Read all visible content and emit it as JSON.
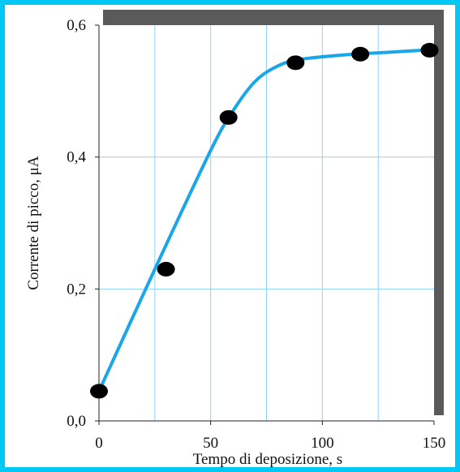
{
  "chart_data": {
    "type": "scatter",
    "xlabel": "Tempo di deposizione, s",
    "ylabel": "Corrente di picco, μA",
    "xlim": [
      0,
      150
    ],
    "ylim": [
      0,
      0.6
    ],
    "x_ticks": [
      0,
      50,
      100,
      150
    ],
    "x_tick_labels": [
      "0",
      "50",
      "100",
      "150"
    ],
    "y_ticks": [
      0.0,
      0.2,
      0.4,
      0.6
    ],
    "y_tick_labels": [
      "0,0",
      "0,2",
      "0,4",
      "0,6"
    ],
    "grid": true,
    "series": [
      {
        "marker": "filled-circle",
        "color": "#000000",
        "x": [
          0,
          30,
          58,
          88,
          117,
          148
        ],
        "y": [
          0.045,
          0.23,
          0.46,
          0.543,
          0.556,
          0.562
        ]
      }
    ],
    "fit_curve": {
      "color": "#1aa6e8",
      "x": [
        0,
        25,
        50,
        60,
        70,
        80,
        90,
        110,
        130,
        150
      ],
      "y": [
        0.045,
        0.23,
        0.41,
        0.47,
        0.515,
        0.538,
        0.548,
        0.555,
        0.559,
        0.563
      ]
    }
  }
}
